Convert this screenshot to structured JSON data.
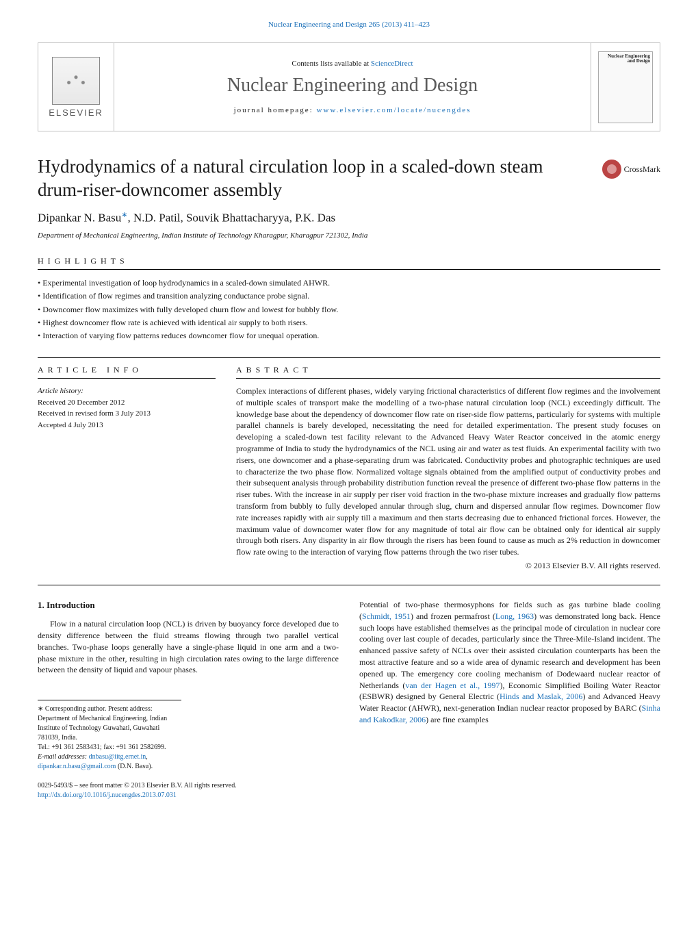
{
  "top_citation": {
    "prefix": "Nuclear Engineering and Design 265 (2013) 411–423",
    "link_text": "Nuclear Engineering and Design 265 (2013) 411–423"
  },
  "header": {
    "contents_prefix": "Contents lists available at ",
    "contents_link": "ScienceDirect",
    "journal_name": "Nuclear Engineering and Design",
    "homepage_label": "journal homepage: ",
    "homepage_url": "www.elsevier.com/locate/nucengdes",
    "elsevier": "ELSEVIER",
    "thumb_title": "Nuclear Engineering and Design"
  },
  "article": {
    "title": "Hydrodynamics of a natural circulation loop in a scaled-down steam drum-riser-downcomer assembly",
    "crossmark": "CrossMark",
    "authors": "Dipankar N. Basu",
    "author_sup": "∗",
    "authors_rest": ", N.D. Patil, Souvik Bhattacharyya, P.K. Das",
    "affiliation": "Department of Mechanical Engineering, Indian Institute of Technology Kharagpur, Kharagpur 721302, India"
  },
  "highlights": {
    "heading": "HIGHLIGHTS",
    "items": [
      "Experimental investigation of loop hydrodynamics in a scaled-down simulated AHWR.",
      "Identification of flow regimes and transition analyzing conductance probe signal.",
      "Downcomer flow maximizes with fully developed churn flow and lowest for bubbly flow.",
      "Highest downcomer flow rate is achieved with identical air supply to both risers.",
      "Interaction of varying flow patterns reduces downcomer flow for unequal operation."
    ]
  },
  "info": {
    "heading": "ARTICLE INFO",
    "history_label": "Article history:",
    "received": "Received 20 December 2012",
    "revised": "Received in revised form 3 July 2013",
    "accepted": "Accepted 4 July 2013"
  },
  "abstract": {
    "heading": "ABSTRACT",
    "body": "Complex interactions of different phases, widely varying frictional characteristics of different flow regimes and the involvement of multiple scales of transport make the modelling of a two-phase natural circulation loop (NCL) exceedingly difficult. The knowledge base about the dependency of downcomer flow rate on riser-side flow patterns, particularly for systems with multiple parallel channels is barely developed, necessitating the need for detailed experimentation. The present study focuses on developing a scaled-down test facility relevant to the Advanced Heavy Water Reactor conceived in the atomic energy programme of India to study the hydrodynamics of the NCL using air and water as test fluids. An experimental facility with two risers, one downcomer and a phase-separating drum was fabricated. Conductivity probes and photographic techniques are used to characterize the two phase flow. Normalized voltage signals obtained from the amplified output of conductivity probes and their subsequent analysis through probability distribution function reveal the presence of different two-phase flow patterns in the riser tubes. With the increase in air supply per riser void fraction in the two-phase mixture increases and gradually flow patterns transform from bubbly to fully developed annular through slug, churn and dispersed annular flow regimes. Downcomer flow rate increases rapidly with air supply till a maximum and then starts decreasing due to enhanced frictional forces. However, the maximum value of downcomer water flow for any magnitude of total air flow can be obtained only for identical air supply through both risers. Any disparity in air flow through the risers has been found to cause as much as 2% reduction in downcomer flow rate owing to the interaction of varying flow patterns through the two riser tubes.",
    "copyright": "© 2013 Elsevier B.V. All rights reserved."
  },
  "intro": {
    "heading": "1.  Introduction",
    "para": "Flow in a natural circulation loop (NCL) is driven by buoyancy force developed due to density difference between the fluid streams flowing through two parallel vertical branches. Two-phase loops generally have a single-phase liquid in one arm and a two-phase mixture in the other, resulting in high circulation rates owing to the large difference between the density of liquid and vapour phases."
  },
  "right_intro": {
    "t1": "Potential of two-phase thermosyphons for fields such as gas turbine blade cooling (",
    "l1": "Schmidt, 1951",
    "t2": ") and frozen permafrost (",
    "l2": "Long, 1963",
    "t3": ") was demonstrated long back. Hence such loops have established themselves as the principal mode of circulation in nuclear core cooling over last couple of decades, particularly since the Three-Mile-Island incident. The enhanced passive safety of NCLs over their assisted circulation counterparts has been the most attractive feature and so a wide area of dynamic research and development has been opened up. The emergency core cooling mechanism of Dodewaard nuclear reactor of Netherlands (",
    "l3": "van der Hagen et al., 1997",
    "t4": "), Economic Simplified Boiling Water Reactor (ESBWR) designed by General Electric (",
    "l4": "Hinds and Maslak, 2006",
    "t5": ") and Advanced Heavy Water Reactor (AHWR), next-generation Indian nuclear reactor proposed by BARC (",
    "l5": "Sinha and Kakodkar, 2006",
    "t6": ") are fine examples"
  },
  "footnote": {
    "corr": "∗ Corresponding author. Present address: Department of Mechanical Engineering, Indian Institute of Technology Guwahati, Guwahati 781039, India.",
    "tel": "Tel.: +91 361 2583431; fax: +91 361 2582699.",
    "email_label": "E-mail addresses: ",
    "email1": "dnbasu@iitg.ernet.in",
    "sep": ", ",
    "email2": "dipankar.n.basu@gmail.com",
    "email_post": " (D.N. Basu)."
  },
  "bottom": {
    "line1": "0029-5493/$ – see front matter © 2013 Elsevier B.V. All rights reserved.",
    "doi": "http://dx.doi.org/10.1016/j.nucengdes.2013.07.031"
  },
  "colors": {
    "link": "#1a6fb8",
    "text": "#1a1a1a",
    "gray": "#5a5a5a",
    "border": "#c0c0c0"
  }
}
